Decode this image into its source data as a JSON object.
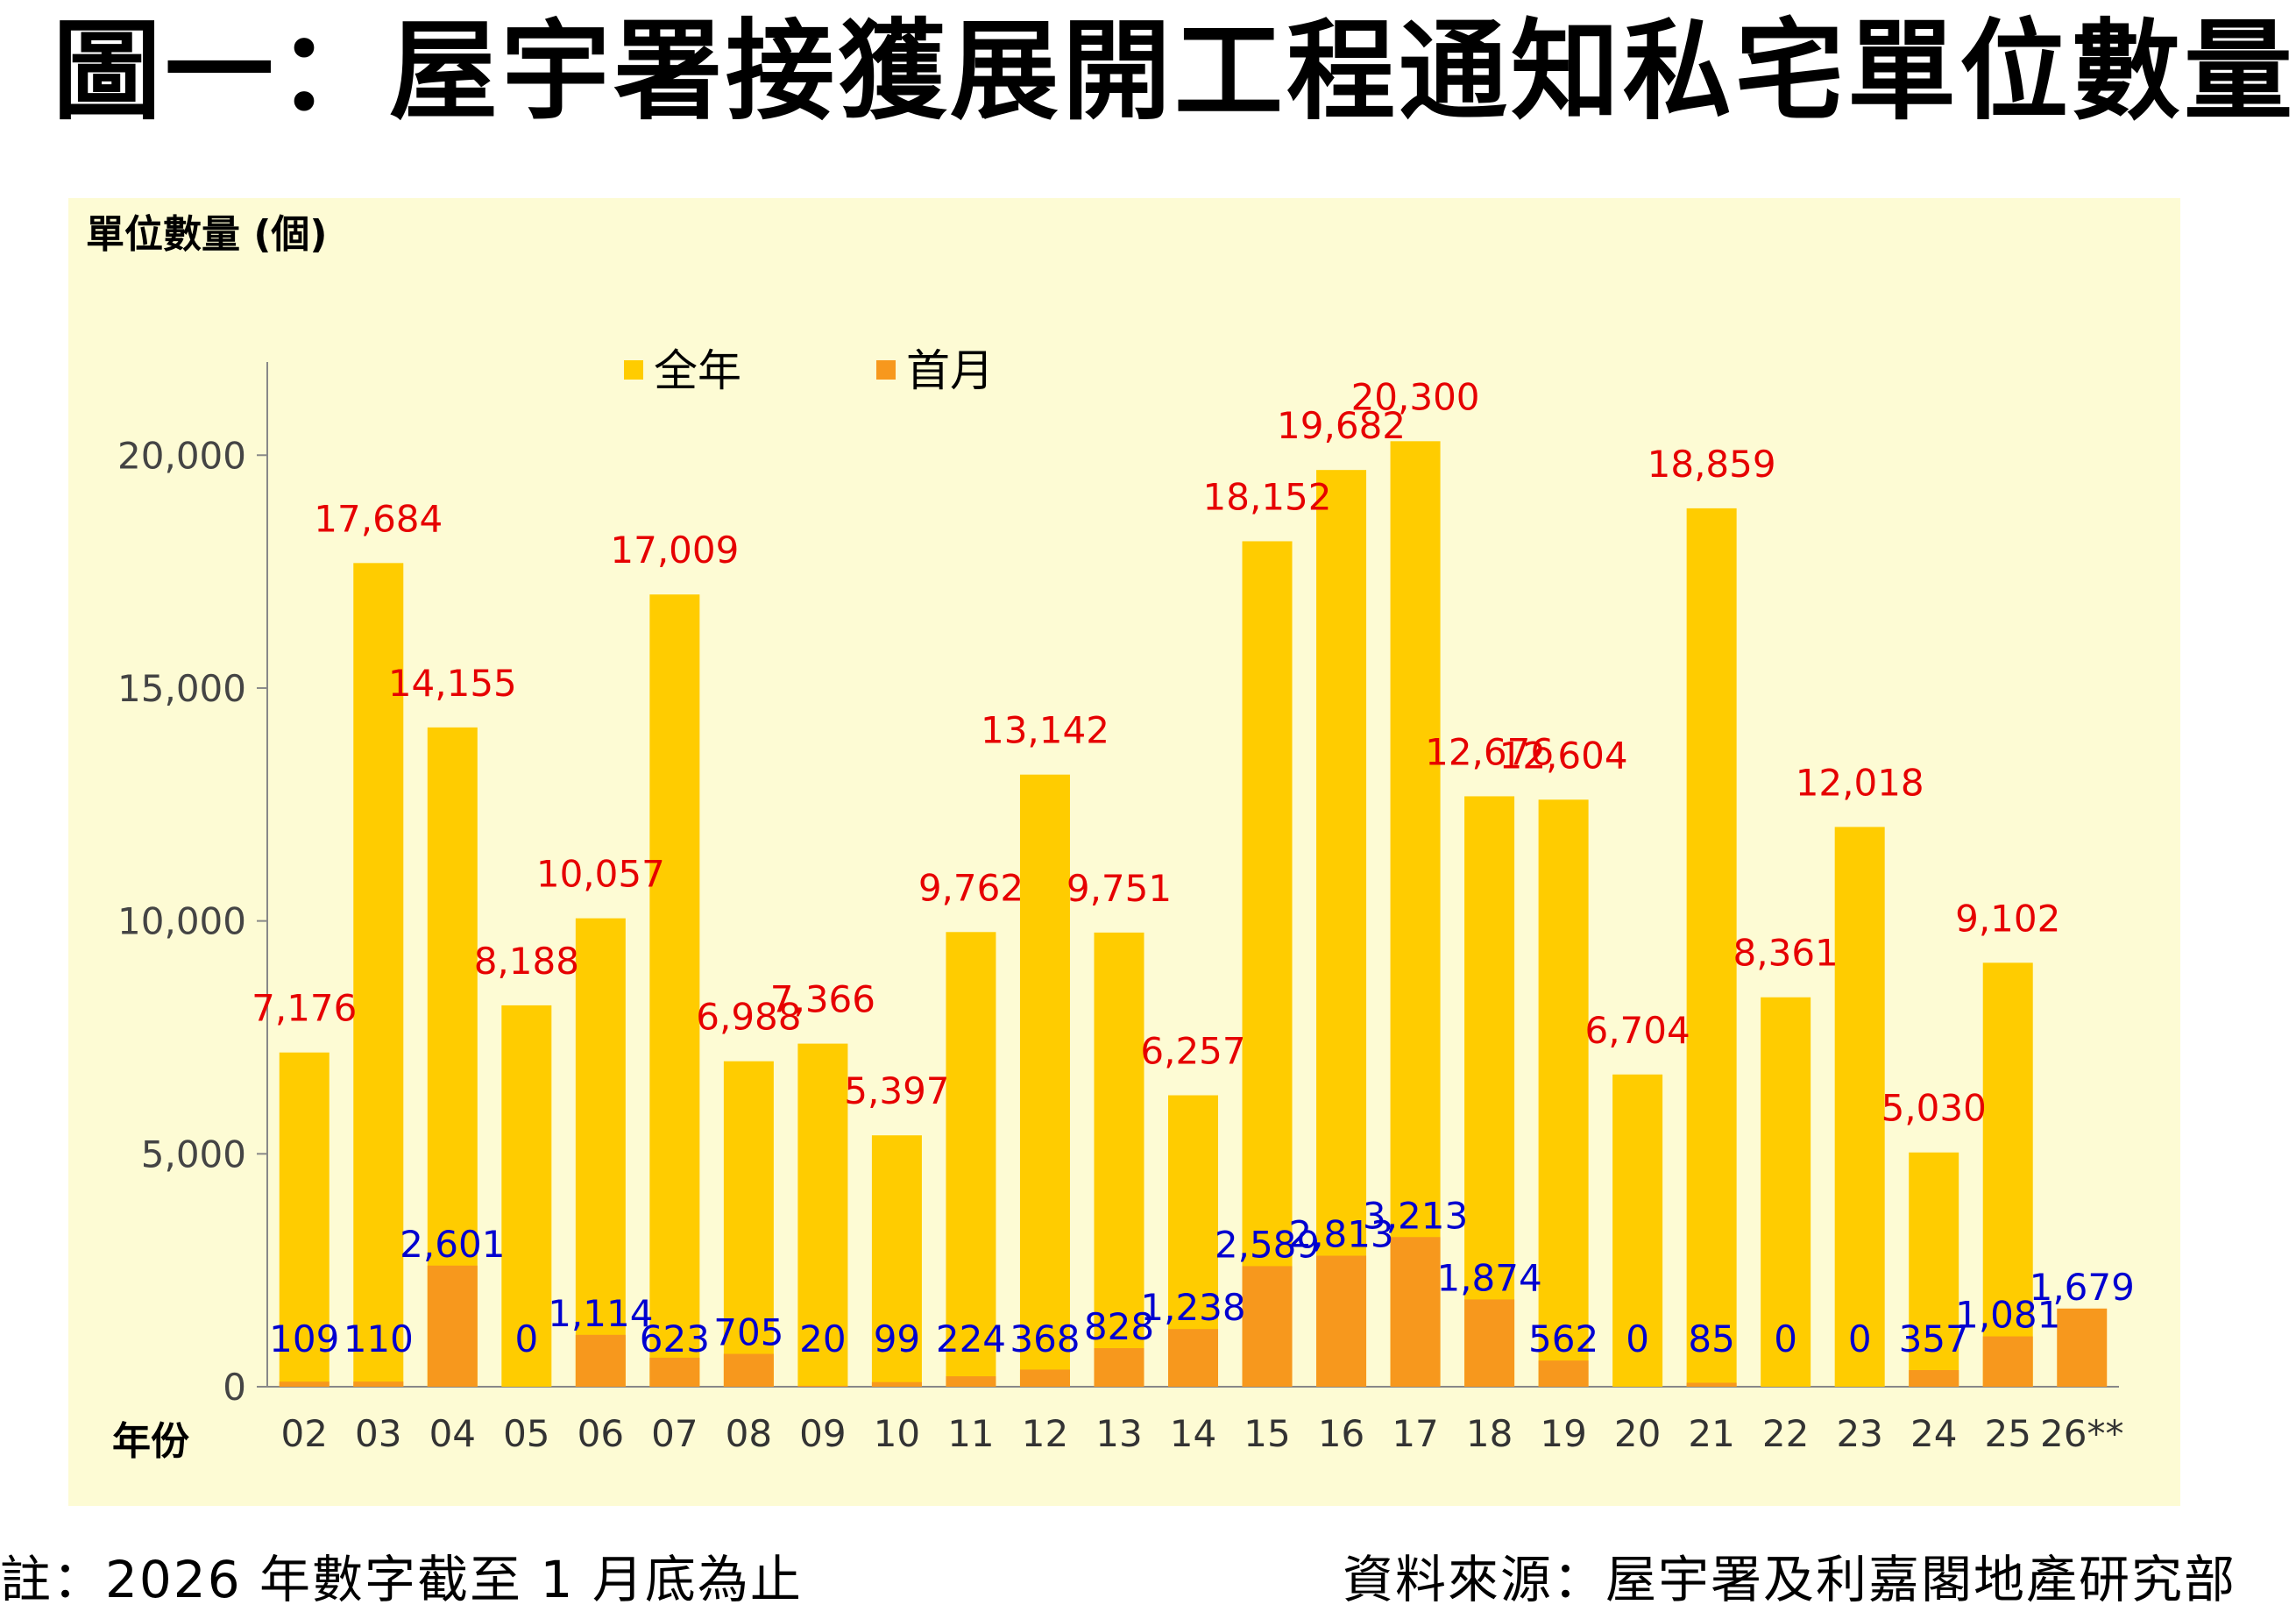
{
  "title": "圖一：屋宇署接獲展開工程通知私宅單位數量",
  "footnote": "註：2026 年數字截至 1 月底為止",
  "source": "資料來源：屋宇署及利嘉閣地產研究部",
  "colors": {
    "panel": "#fdfbd4",
    "full_year_bar": "#ffcc00",
    "first_month_bar": "#f7981d",
    "full_year_label": "#e60000",
    "first_month_label": "#0000d0"
  },
  "chart_data": {
    "type": "bar",
    "ylabel": "單位數量 (個)",
    "xlabel": "年份",
    "ylim": [
      0,
      22000
    ],
    "yticks": [
      0,
      5000,
      10000,
      15000,
      20000
    ],
    "ytick_labels": [
      "0",
      "5,000",
      "10,000",
      "15,000",
      "20,000"
    ],
    "grid": false,
    "legend_position": "top-center",
    "categories": [
      "02",
      "03",
      "04",
      "05",
      "06",
      "07",
      "08",
      "09",
      "10",
      "11",
      "12",
      "13",
      "14",
      "15",
      "16",
      "17",
      "18",
      "19",
      "20",
      "21",
      "22",
      "23",
      "24",
      "25",
      "26**"
    ],
    "series": [
      {
        "name": "全年",
        "values": [
          7176,
          17684,
          14155,
          8188,
          10057,
          17009,
          6988,
          7366,
          5397,
          9762,
          13142,
          9751,
          6257,
          18152,
          19682,
          20300,
          12676,
          12604,
          6704,
          18859,
          8361,
          12018,
          5030,
          9102,
          null
        ],
        "labels": [
          "7,176",
          "17,684",
          "14,155",
          "8,188",
          "10,057",
          "17,009",
          "6,988",
          "7,366",
          "5,397",
          "9,762",
          "13,142",
          "9,751",
          "6,257",
          "18,152",
          "19,682",
          "20,300",
          "12,676",
          "12,604",
          "6,704",
          "18,859",
          "8,361",
          "12,018",
          "5,030",
          "9,102",
          ""
        ]
      },
      {
        "name": "首月",
        "values": [
          109,
          110,
          2601,
          0,
          1114,
          623,
          705,
          20,
          99,
          224,
          368,
          828,
          1238,
          2589,
          2813,
          3213,
          1874,
          562,
          0,
          85,
          0,
          0,
          357,
          1081,
          1679
        ],
        "labels": [
          "109",
          "110",
          "2,601",
          "0",
          "1,114",
          "623",
          "705",
          "20",
          "99",
          "224",
          "368",
          "828",
          "1,238",
          "2,589",
          "2,813",
          "3,213",
          "1,874",
          "562",
          "0",
          "85",
          "0",
          "0",
          "357",
          "1,081",
          "1,679"
        ]
      }
    ]
  }
}
